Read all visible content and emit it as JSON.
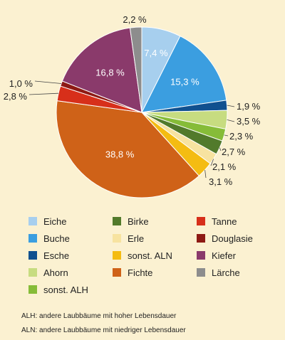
{
  "chart_data": {
    "type": "pie",
    "title": "",
    "slices": [
      {
        "label": "Eiche",
        "value": 7.4,
        "display": "7,4 %",
        "color": "#a7cfee"
      },
      {
        "label": "Buche",
        "value": 15.3,
        "display": "15,3 %",
        "color": "#3b9ee0"
      },
      {
        "label": "Esche",
        "value": 1.9,
        "display": "1,9 %",
        "color": "#10508f"
      },
      {
        "label": "Ahorn",
        "value": 3.5,
        "display": "3,5 %",
        "color": "#c7dc80"
      },
      {
        "label": "sonst. ALH",
        "value": 2.3,
        "display": "2,3 %",
        "color": "#86bc38"
      },
      {
        "label": "Birke",
        "value": 2.7,
        "display": "2,7 %",
        "color": "#527a2b"
      },
      {
        "label": "Erle",
        "value": 2.1,
        "display": "2,1 %",
        "color": "#f7e3a0"
      },
      {
        "label": "sonst. ALN",
        "value": 3.1,
        "display": "3,1 %",
        "color": "#f4bc12"
      },
      {
        "label": "Fichte",
        "value": 38.8,
        "display": "38,8 %",
        "color": "#cf6218"
      },
      {
        "label": "Tanne",
        "value": 2.8,
        "display": "2,8 %",
        "color": "#d72f1a"
      },
      {
        "label": "Douglasie",
        "value": 1.0,
        "display": "1,0 %",
        "color": "#8e1a14"
      },
      {
        "label": "Kiefer",
        "value": 16.8,
        "display": "16,8 %",
        "color": "#8a3a6b"
      },
      {
        "label": "Lärche",
        "value": 2.2,
        "display": "2,2 %",
        "color": "#8d8d8d"
      }
    ]
  },
  "legend": [
    {
      "label": "Eiche",
      "color": "#a7cfee"
    },
    {
      "label": "Birke",
      "color": "#527a2b"
    },
    {
      "label": "Tanne",
      "color": "#d72f1a"
    },
    {
      "label": "Buche",
      "color": "#3b9ee0"
    },
    {
      "label": "Erle",
      "color": "#f7e3a0"
    },
    {
      "label": "Douglasie",
      "color": "#8e1a14"
    },
    {
      "label": "Esche",
      "color": "#10508f"
    },
    {
      "label": "sonst. ALN",
      "color": "#f4bc12"
    },
    {
      "label": "Kiefer",
      "color": "#8a3a6b"
    },
    {
      "label": "Ahorn",
      "color": "#c7dc80"
    },
    {
      "label": "Fichte",
      "color": "#cf6218"
    },
    {
      "label": "Lärche",
      "color": "#8d8d8d"
    },
    {
      "label": "sonst. ALH",
      "color": "#86bc38"
    }
  ],
  "footnotes": [
    "ALH: andere Laubbäume mit hoher Lebensdauer",
    "ALN: andere Laubbäume mit niedriger Lebensdauer"
  ],
  "background_color": "#fbf1d1"
}
